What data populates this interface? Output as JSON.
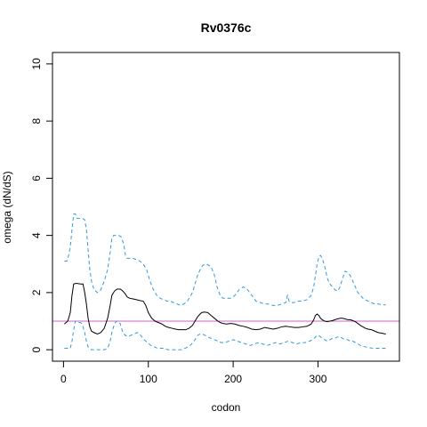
{
  "chart_data": {
    "type": "line",
    "title": "Rv0376c",
    "xlabel": "codon",
    "ylabel": "omega (dN/dS)",
    "xlim": [
      -13,
      396
    ],
    "ylim": [
      -0.4,
      10.4
    ],
    "xticks": [
      0,
      100,
      200,
      300
    ],
    "yticks": [
      0,
      2,
      4,
      6,
      8,
      10
    ],
    "reference_line": {
      "y": 1,
      "color": "#cc66cc"
    },
    "colors": {
      "omega": "#000000",
      "upper": "#3399dd",
      "lower": "#3399dd"
    },
    "series": [
      {
        "key": "omega",
        "style": "solid",
        "x": [
          1,
          5,
          8,
          10,
          12,
          14,
          16,
          20,
          23,
          25,
          27,
          29,
          31,
          33,
          36,
          40,
          44,
          48,
          52,
          55,
          57,
          60,
          63,
          67,
          70,
          73,
          75,
          78,
          82,
          86,
          90,
          94,
          97,
          100,
          104,
          108,
          112,
          116,
          120,
          124,
          128,
          132,
          136,
          140,
          144,
          148,
          152,
          155,
          158,
          161,
          163,
          166,
          170,
          174,
          178,
          182,
          185,
          188,
          192,
          197,
          202,
          207,
          212,
          217,
          222,
          227,
          232,
          237,
          242,
          247,
          252,
          257,
          262,
          267,
          272,
          277,
          282,
          287,
          292,
          295,
          297,
          299,
          301,
          303,
          305,
          308,
          311,
          314,
          317,
          320,
          323,
          326,
          329,
          332,
          335,
          338,
          341,
          344,
          347,
          350,
          353,
          356,
          359,
          363,
          367,
          371,
          375,
          378,
          380
        ],
        "y": [
          0.9,
          1.0,
          1.3,
          1.9,
          2.3,
          2.32,
          2.32,
          2.3,
          2.3,
          2.0,
          1.6,
          1.1,
          0.8,
          0.65,
          0.6,
          0.55,
          0.6,
          0.75,
          1.1,
          1.55,
          1.9,
          2.05,
          2.12,
          2.12,
          2.05,
          1.95,
          1.85,
          1.8,
          1.78,
          1.75,
          1.72,
          1.7,
          1.55,
          1.3,
          1.1,
          1.0,
          0.95,
          0.9,
          0.82,
          0.78,
          0.75,
          0.72,
          0.7,
          0.7,
          0.7,
          0.75,
          0.85,
          1.0,
          1.15,
          1.25,
          1.3,
          1.32,
          1.3,
          1.2,
          1.1,
          1.0,
          0.95,
          0.92,
          0.9,
          0.92,
          0.9,
          0.85,
          0.82,
          0.78,
          0.72,
          0.7,
          0.72,
          0.78,
          0.75,
          0.72,
          0.75,
          0.8,
          0.82,
          0.8,
          0.78,
          0.78,
          0.8,
          0.82,
          0.9,
          1.05,
          1.2,
          1.25,
          1.2,
          1.1,
          1.05,
          1.0,
          0.98,
          1.0,
          1.02,
          1.05,
          1.08,
          1.1,
          1.1,
          1.08,
          1.05,
          1.05,
          1.02,
          0.98,
          0.92,
          0.85,
          0.8,
          0.75,
          0.72,
          0.7,
          0.65,
          0.6,
          0.58,
          0.56,
          0.55
        ]
      },
      {
        "key": "upper",
        "style": "dashed",
        "x": [
          1,
          4,
          6,
          8,
          10,
          12,
          14,
          16,
          18,
          20,
          22,
          25,
          27,
          29,
          31,
          33,
          36,
          40,
          44,
          48,
          52,
          55,
          57,
          59,
          61,
          63,
          65,
          68,
          71,
          73,
          75,
          78,
          82,
          86,
          90,
          94,
          98,
          102,
          106,
          110,
          114,
          118,
          122,
          126,
          130,
          134,
          138,
          142,
          146,
          149,
          152,
          155,
          158,
          161,
          164,
          167,
          170,
          174,
          178,
          181,
          184,
          186,
          188,
          192,
          197,
          202,
          207,
          212,
          217,
          222,
          227,
          232,
          237,
          242,
          247,
          252,
          257,
          262,
          264,
          266,
          268,
          272,
          277,
          282,
          287,
          292,
          295,
          297,
          299,
          301,
          303,
          305,
          308,
          311,
          314,
          317,
          320,
          323,
          326,
          329,
          332,
          335,
          338,
          341,
          344,
          347,
          350,
          353,
          356,
          359,
          363,
          367,
          371,
          375,
          380
        ],
        "y": [
          3.1,
          3.1,
          3.3,
          3.6,
          4.2,
          4.75,
          4.75,
          4.6,
          4.6,
          4.6,
          4.6,
          4.55,
          4.2,
          3.5,
          2.8,
          2.4,
          2.1,
          2.0,
          2.1,
          2.4,
          2.8,
          3.4,
          3.9,
          4.0,
          4.0,
          4.0,
          4.0,
          3.95,
          3.7,
          3.3,
          3.2,
          3.2,
          3.2,
          3.15,
          3.1,
          3.0,
          2.8,
          2.4,
          2.1,
          1.9,
          1.8,
          1.75,
          1.7,
          1.7,
          1.65,
          1.6,
          1.55,
          1.6,
          1.7,
          1.85,
          2.0,
          2.3,
          2.6,
          2.8,
          2.95,
          3.0,
          2.98,
          2.9,
          2.6,
          2.2,
          1.95,
          1.85,
          1.8,
          1.8,
          1.8,
          1.9,
          2.1,
          2.2,
          2.1,
          1.9,
          1.7,
          1.65,
          1.6,
          1.6,
          1.55,
          1.55,
          1.6,
          1.65,
          1.9,
          1.7,
          1.65,
          1.65,
          1.7,
          1.7,
          1.75,
          1.9,
          2.2,
          2.6,
          3.0,
          3.25,
          3.3,
          3.2,
          2.9,
          2.5,
          2.3,
          2.2,
          2.1,
          2.05,
          2.2,
          2.5,
          2.75,
          2.7,
          2.6,
          2.4,
          2.2,
          2.0,
          1.9,
          1.8,
          1.75,
          1.7,
          1.65,
          1.6,
          1.6,
          1.58,
          1.57
        ]
      },
      {
        "key": "lower",
        "style": "dashed",
        "x": [
          1,
          5,
          8,
          10,
          12,
          14,
          16,
          18,
          20,
          22,
          25,
          27,
          29,
          31,
          33,
          36,
          40,
          44,
          48,
          52,
          55,
          57,
          59,
          61,
          63,
          65,
          67,
          70,
          73,
          76,
          79,
          83,
          87,
          91,
          95,
          99,
          103,
          107,
          111,
          115,
          119,
          123,
          127,
          131,
          135,
          139,
          143,
          147,
          151,
          155,
          158,
          161,
          164,
          167,
          170,
          174,
          178,
          182,
          186,
          190,
          195,
          200,
          205,
          210,
          215,
          220,
          225,
          230,
          235,
          240,
          245,
          250,
          255,
          260,
          265,
          270,
          275,
          280,
          285,
          290,
          294,
          297,
          299,
          301,
          303,
          305,
          308,
          311,
          314,
          317,
          320,
          323,
          326,
          329,
          332,
          335,
          338,
          341,
          344,
          347,
          350,
          353,
          356,
          359,
          363,
          367,
          371,
          375,
          380
        ],
        "y": [
          0.05,
          0.05,
          0.05,
          0.3,
          0.7,
          1.0,
          1.0,
          0.95,
          0.95,
          0.9,
          0.6,
          0.3,
          0.1,
          0.05,
          0.0,
          0.0,
          0.0,
          0.0,
          0.0,
          0.05,
          0.3,
          0.6,
          0.8,
          0.95,
          1.0,
          1.0,
          0.9,
          0.6,
          0.5,
          0.45,
          0.5,
          0.55,
          0.6,
          0.5,
          0.35,
          0.25,
          0.15,
          0.1,
          0.05,
          0.05,
          0.05,
          0.0,
          0.0,
          0.0,
          0.0,
          0.0,
          0.05,
          0.1,
          0.2,
          0.35,
          0.5,
          0.55,
          0.55,
          0.5,
          0.45,
          0.4,
          0.35,
          0.3,
          0.25,
          0.25,
          0.3,
          0.35,
          0.3,
          0.25,
          0.2,
          0.15,
          0.2,
          0.25,
          0.2,
          0.15,
          0.2,
          0.25,
          0.2,
          0.25,
          0.3,
          0.25,
          0.2,
          0.25,
          0.25,
          0.3,
          0.35,
          0.45,
          0.5,
          0.5,
          0.45,
          0.4,
          0.35,
          0.3,
          0.35,
          0.4,
          0.4,
          0.45,
          0.45,
          0.4,
          0.35,
          0.35,
          0.3,
          0.3,
          0.25,
          0.2,
          0.15,
          0.12,
          0.1,
          0.08,
          0.06,
          0.05,
          0.05,
          0.05,
          0.05
        ]
      }
    ]
  }
}
